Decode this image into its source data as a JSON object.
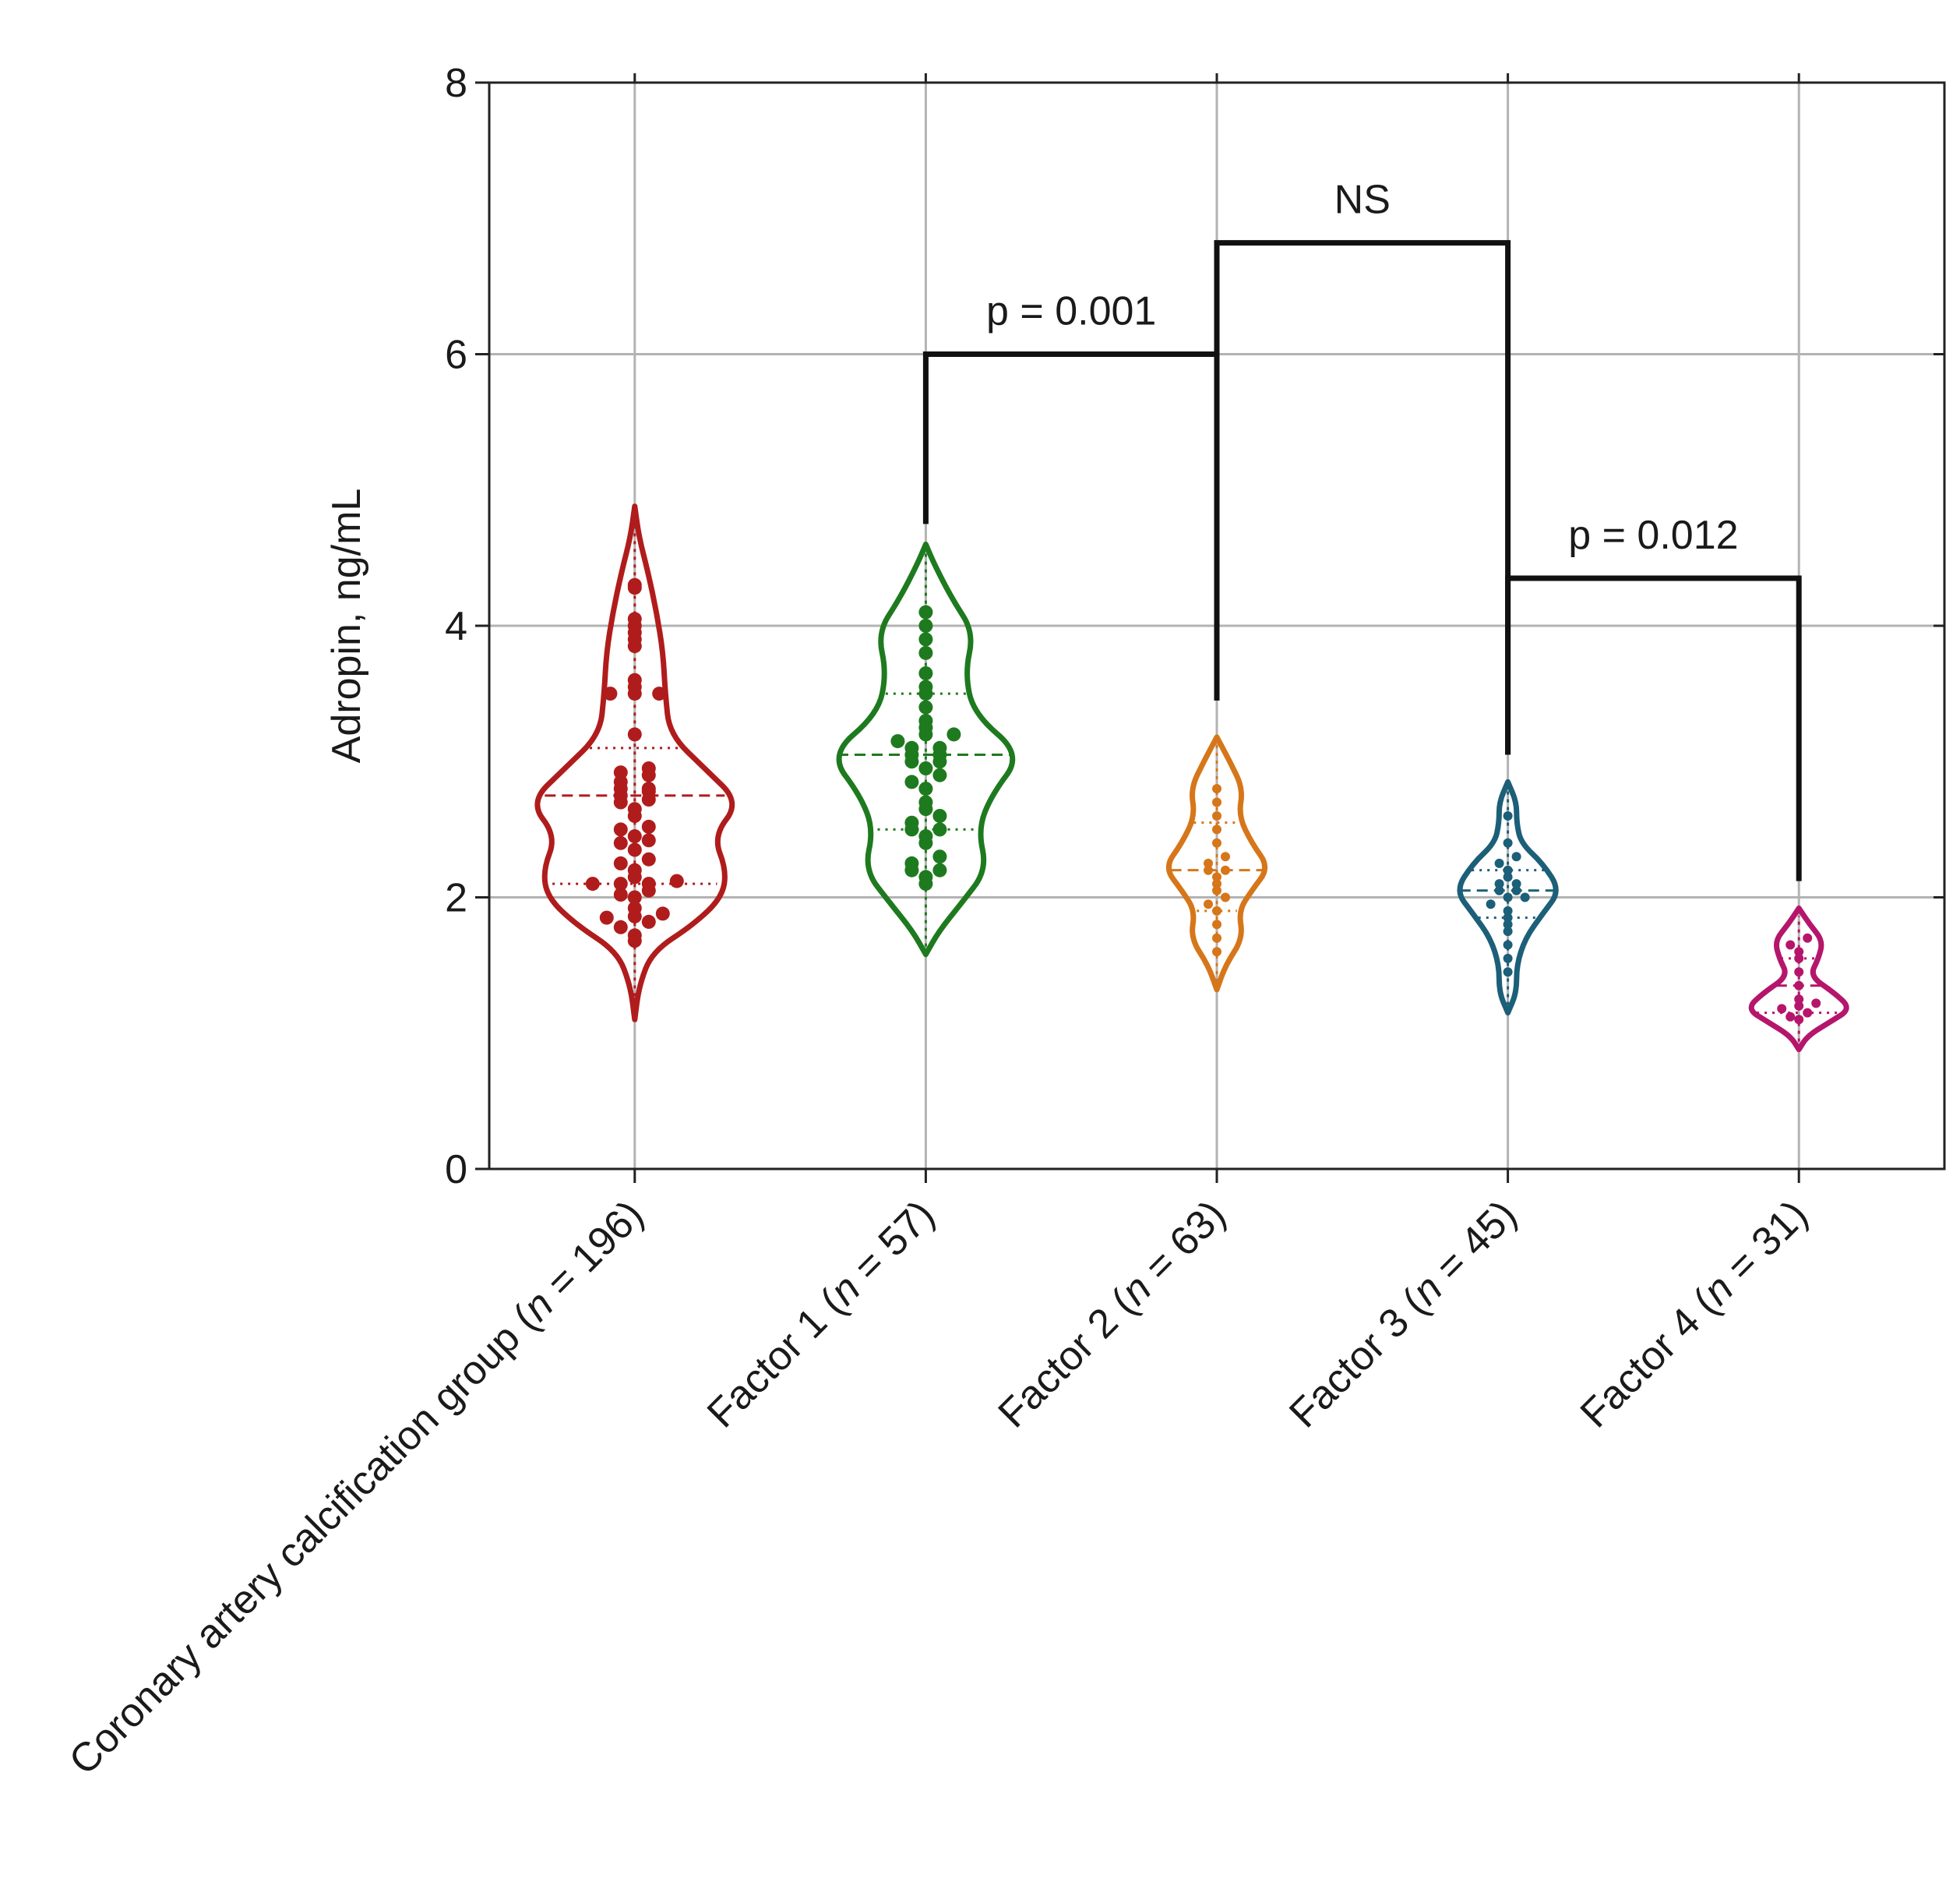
{
  "chart_data": {
    "type": "violin",
    "title": "",
    "xlabel": "",
    "ylabel": "Adropin, ng/mL",
    "ylim": [
      0,
      8
    ],
    "yticks": [
      "0",
      "2",
      "4",
      "6",
      "8"
    ],
    "grid": true,
    "legend": "none",
    "groups": [
      {
        "label_prefix": "Coronary artery calcification group (",
        "n": "196",
        "color": "#b01c1c",
        "min": 1.1,
        "max": 4.88,
        "median": 2.75,
        "q1": 2.1,
        "q3": 3.1,
        "profile": [
          [
            1.1,
            0
          ],
          [
            1.35,
            0.02
          ],
          [
            1.6,
            0.08
          ],
          [
            1.8,
            0.27
          ],
          [
            2.0,
            0.4
          ],
          [
            2.2,
            0.42
          ],
          [
            2.45,
            0.36
          ],
          [
            2.7,
            0.48
          ],
          [
            2.95,
            0.32
          ],
          [
            3.2,
            0.16
          ],
          [
            3.5,
            0.14
          ],
          [
            3.8,
            0.13
          ],
          [
            4.1,
            0.1
          ],
          [
            4.4,
            0.06
          ],
          [
            4.65,
            0.02
          ],
          [
            4.88,
            0
          ]
        ],
        "points": [
          1.68,
          1.72,
          1.78,
          1.82,
          1.85,
          1.86,
          1.88,
          1.92,
          2.0,
          2.02,
          2.05,
          2.1,
          2.1,
          2.1,
          2.12,
          2.15,
          2.2,
          2.25,
          2.28,
          2.35,
          2.4,
          2.42,
          2.45,
          2.5,
          2.52,
          2.6,
          2.65,
          2.7,
          2.72,
          2.75,
          2.78,
          2.8,
          2.8,
          2.85,
          2.9,
          2.92,
          2.95,
          3.2,
          3.5,
          3.5,
          3.5,
          3.55,
          3.6,
          3.85,
          3.9,
          3.95,
          4.0,
          4.05,
          4.28,
          4.3
        ]
      },
      {
        "label_prefix": "Factor 1 (",
        "n": "57",
        "color": "#1e7a1e",
        "min": 1.58,
        "max": 4.6,
        "median": 3.05,
        "q1": 2.5,
        "q3": 3.5,
        "profile": [
          [
            1.58,
            0
          ],
          [
            1.75,
            0.06
          ],
          [
            1.95,
            0.16
          ],
          [
            2.2,
            0.28
          ],
          [
            2.5,
            0.24
          ],
          [
            2.75,
            0.3
          ],
          [
            3.05,
            0.44
          ],
          [
            3.35,
            0.22
          ],
          [
            3.65,
            0.18
          ],
          [
            3.95,
            0.22
          ],
          [
            4.2,
            0.12
          ],
          [
            4.45,
            0.04
          ],
          [
            4.6,
            0
          ]
        ],
        "points": [
          2.1,
          2.15,
          2.2,
          2.2,
          2.25,
          2.3,
          2.4,
          2.45,
          2.5,
          2.5,
          2.55,
          2.6,
          2.65,
          2.7,
          2.8,
          2.85,
          2.9,
          2.95,
          3.0,
          3.0,
          3.05,
          3.05,
          3.1,
          3.1,
          3.15,
          3.2,
          3.2,
          3.25,
          3.3,
          3.4,
          3.5,
          3.55,
          3.65,
          3.8,
          3.9,
          4.0,
          4.1
        ]
      },
      {
        "label_prefix": "Factor 2 (",
        "n": "63",
        "color": "#d6761a",
        "min": 1.32,
        "max": 3.18,
        "median": 2.2,
        "q1": 1.9,
        "q3": 2.55,
        "profile": [
          [
            1.32,
            0
          ],
          [
            1.5,
            0.04
          ],
          [
            1.7,
            0.12
          ],
          [
            1.9,
            0.1
          ],
          [
            2.05,
            0.16
          ],
          [
            2.22,
            0.24
          ],
          [
            2.4,
            0.16
          ],
          [
            2.6,
            0.1
          ],
          [
            2.8,
            0.12
          ],
          [
            3.0,
            0.06
          ],
          [
            3.18,
            0
          ]
        ],
        "points": [
          1.6,
          1.7,
          1.8,
          1.9,
          1.95,
          2.0,
          2.05,
          2.1,
          2.15,
          2.2,
          2.2,
          2.25,
          2.3,
          2.4,
          2.5,
          2.6,
          2.7,
          2.8
        ]
      },
      {
        "label_prefix": "Factor 3 (",
        "n": "45",
        "color": "#1c5f78",
        "min": 1.15,
        "max": 2.85,
        "median": 2.05,
        "q1": 1.85,
        "q3": 2.2,
        "profile": [
          [
            1.15,
            0
          ],
          [
            1.3,
            0.04
          ],
          [
            1.5,
            0.04
          ],
          [
            1.7,
            0.08
          ],
          [
            1.88,
            0.16
          ],
          [
            2.05,
            0.24
          ],
          [
            2.25,
            0.16
          ],
          [
            2.4,
            0.06
          ],
          [
            2.55,
            0.04
          ],
          [
            2.7,
            0.04
          ],
          [
            2.85,
            0
          ]
        ],
        "points": [
          1.45,
          1.55,
          1.65,
          1.75,
          1.8,
          1.85,
          1.9,
          1.95,
          2.0,
          2.0,
          2.05,
          2.05,
          2.1,
          2.1,
          2.15,
          2.2,
          2.25,
          2.3,
          2.4,
          2.6
        ]
      },
      {
        "label_prefix": "Factor 4 (",
        "n": "31",
        "color": "#b5166b",
        "min": 0.88,
        "max": 1.92,
        "median": 1.35,
        "q1": 1.15,
        "q3": 1.55,
        "profile": [
          [
            0.88,
            0
          ],
          [
            0.98,
            0.04
          ],
          [
            1.08,
            0.14
          ],
          [
            1.18,
            0.24
          ],
          [
            1.3,
            0.16
          ],
          [
            1.42,
            0.05
          ],
          [
            1.55,
            0.09
          ],
          [
            1.68,
            0.11
          ],
          [
            1.8,
            0.05
          ],
          [
            1.92,
            0
          ]
        ],
        "points": [
          1.1,
          1.12,
          1.15,
          1.18,
          1.2,
          1.22,
          1.25,
          1.35,
          1.45,
          1.55,
          1.6,
          1.65,
          1.7
        ]
      }
    ],
    "comparisons": [
      {
        "label": "p = 0.001",
        "from": 1,
        "to": 2,
        "y": 6.0,
        "left_drop": 4.75,
        "right_drop": 3.45
      },
      {
        "label": "NS",
        "from": 2,
        "to": 3,
        "y": 6.82,
        "left_drop": 3.45,
        "right_drop": 3.05
      },
      {
        "label": "p = 0.012",
        "from": 3,
        "to": 4,
        "y": 4.35,
        "left_drop": 3.05,
        "right_drop": 2.12
      }
    ]
  }
}
